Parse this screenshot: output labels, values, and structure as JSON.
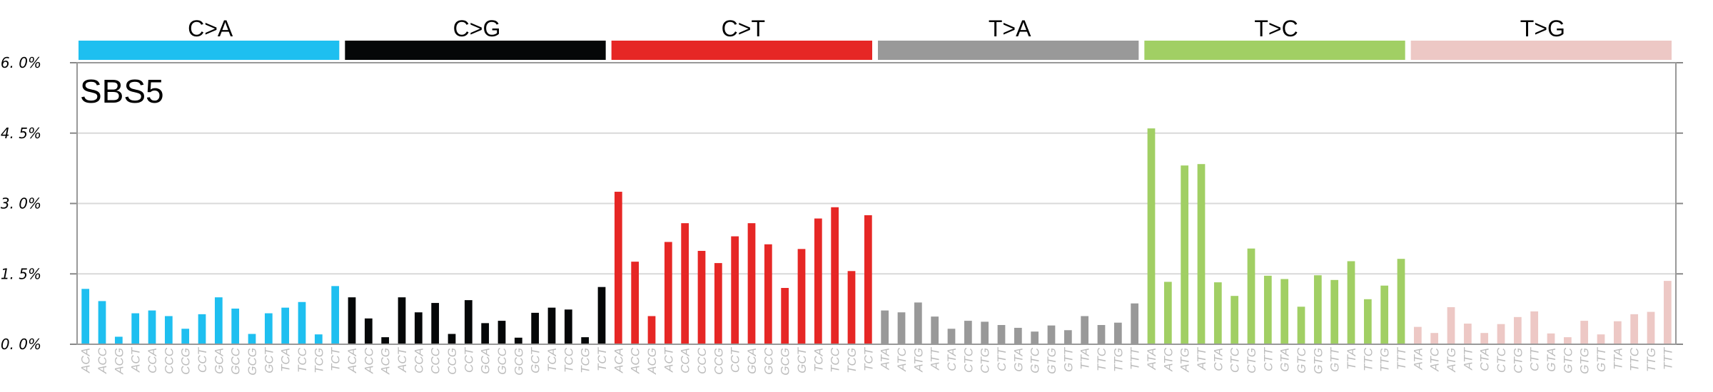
{
  "chart_data": {
    "type": "bar",
    "title": "SBS5",
    "ylim": [
      0,
      6.0
    ],
    "yticks": [
      {
        "value": 0.0,
        "label": "0. 0%"
      },
      {
        "value": 1.5,
        "label": "1. 5%"
      },
      {
        "value": 3.0,
        "label": "3. 0%"
      },
      {
        "value": 4.5,
        "label": "4. 5%"
      },
      {
        "value": 6.0,
        "label": "6. 0%"
      }
    ],
    "grid": true,
    "groups": [
      {
        "name": "C>A",
        "color": "#1ebff0",
        "contexts": [
          "ACA",
          "ACC",
          "ACG",
          "ACT",
          "CCA",
          "CCC",
          "CCG",
          "CCT",
          "GCA",
          "GCC",
          "GCG",
          "GCT",
          "TCA",
          "TCC",
          "TCG",
          "TCT"
        ],
        "values": [
          1.18,
          0.92,
          0.16,
          0.66,
          0.72,
          0.6,
          0.33,
          0.64,
          1.0,
          0.76,
          0.22,
          0.66,
          0.78,
          0.9,
          0.21,
          1.24
        ]
      },
      {
        "name": "C>G",
        "color": "#050708",
        "contexts": [
          "ACA",
          "ACC",
          "ACG",
          "ACT",
          "CCA",
          "CCC",
          "CCG",
          "CCT",
          "GCA",
          "GCC",
          "GCG",
          "GCT",
          "TCA",
          "TCC",
          "TCG",
          "TCT"
        ],
        "values": [
          1.0,
          0.55,
          0.15,
          1.0,
          0.68,
          0.88,
          0.22,
          0.94,
          0.45,
          0.5,
          0.14,
          0.67,
          0.78,
          0.74,
          0.15,
          1.22
        ]
      },
      {
        "name": "C>T",
        "color": "#e62725",
        "contexts": [
          "ACA",
          "ACC",
          "ACG",
          "ACT",
          "CCA",
          "CCC",
          "CCG",
          "CCT",
          "GCA",
          "GCC",
          "GCG",
          "GCT",
          "TCA",
          "TCC",
          "TCG",
          "TCT"
        ],
        "values": [
          3.25,
          1.76,
          0.6,
          2.18,
          2.58,
          1.99,
          1.73,
          2.3,
          2.58,
          2.13,
          1.2,
          2.03,
          2.68,
          2.92,
          1.56,
          2.75
        ]
      },
      {
        "name": "T>A",
        "color": "#999999",
        "contexts": [
          "ATA",
          "ATC",
          "ATG",
          "ATT",
          "CTA",
          "CTC",
          "CTG",
          "CTT",
          "GTA",
          "GTC",
          "GTG",
          "GTT",
          "TTA",
          "TTC",
          "TTG",
          "TTT"
        ],
        "values": [
          0.72,
          0.68,
          0.89,
          0.59,
          0.33,
          0.5,
          0.48,
          0.41,
          0.35,
          0.27,
          0.4,
          0.3,
          0.6,
          0.41,
          0.46,
          0.87
        ]
      },
      {
        "name": "T>C",
        "color": "#a1cf64",
        "contexts": [
          "ATA",
          "ATC",
          "ATG",
          "ATT",
          "CTA",
          "CTC",
          "CTG",
          "CTT",
          "GTA",
          "GTC",
          "GTG",
          "GTT",
          "TTA",
          "TTC",
          "TTG",
          "TTT"
        ],
        "values": [
          4.6,
          1.33,
          3.81,
          3.84,
          1.32,
          1.03,
          2.04,
          1.46,
          1.39,
          0.8,
          1.47,
          1.37,
          1.77,
          0.96,
          1.25,
          1.82
        ]
      },
      {
        "name": "T>G",
        "color": "#edc8c5",
        "contexts": [
          "ATA",
          "ATC",
          "ATG",
          "ATT",
          "CTA",
          "CTC",
          "CTG",
          "CTT",
          "GTA",
          "GTC",
          "GTG",
          "GTT",
          "TTA",
          "TTC",
          "TTG",
          "TTT"
        ],
        "values": [
          0.37,
          0.24,
          0.79,
          0.44,
          0.24,
          0.43,
          0.58,
          0.7,
          0.23,
          0.15,
          0.5,
          0.21,
          0.49,
          0.64,
          0.69,
          1.35
        ]
      }
    ]
  }
}
